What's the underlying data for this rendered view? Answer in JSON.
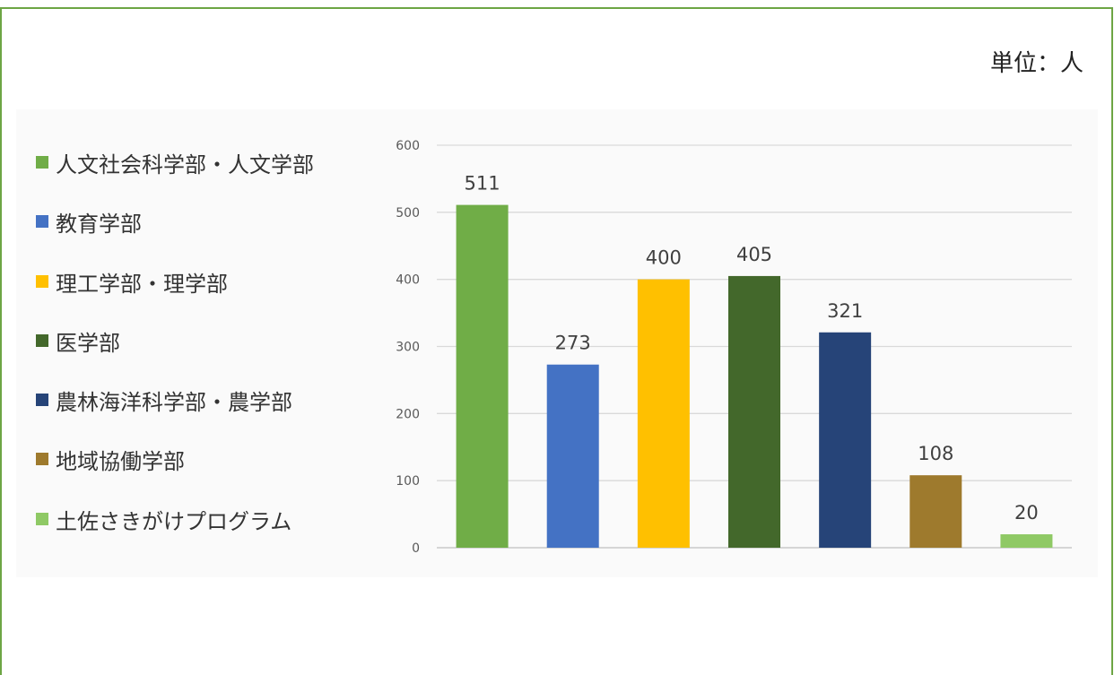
{
  "unit_label": "単位：人",
  "colors": {
    "frame": "#6da544",
    "grid": "#d9d9d9",
    "axis_text": "#595959",
    "label_text": "#404040"
  },
  "chart_data": {
    "type": "bar",
    "categories": [
      "人文社会科学部・人文学部",
      "教育学部",
      "理工学部・理学部",
      "医学部",
      "農林海洋科学部・農学部",
      "地域協働学部",
      "土佐さきがけプログラム"
    ],
    "values": [
      511,
      273,
      400,
      405,
      321,
      108,
      20
    ],
    "colors": [
      "#70ad47",
      "#4472c4",
      "#ffc000",
      "#43682b",
      "#264478",
      "#9e7a2d",
      "#8fc965"
    ],
    "ylim": [
      0,
      600
    ],
    "yticks": [
      0,
      100,
      200,
      300,
      400,
      500,
      600
    ],
    "grid": true,
    "legend_position": "left",
    "data_labels": true
  }
}
